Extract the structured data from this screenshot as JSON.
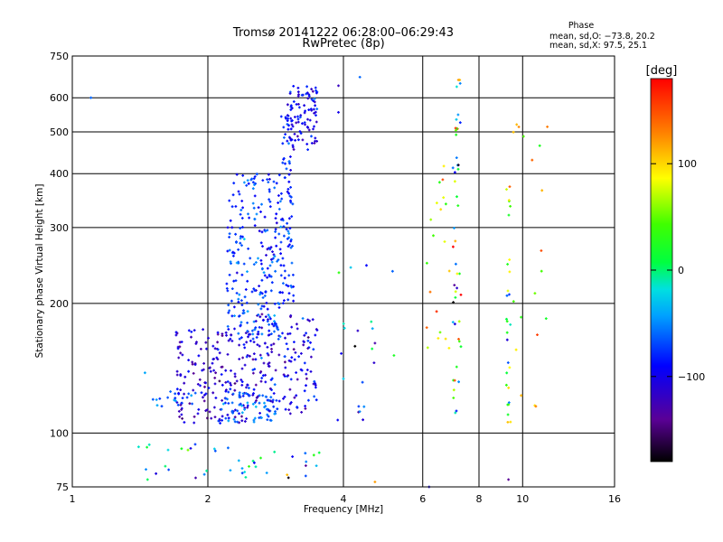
{
  "chart_data": {
    "type": "scatter",
    "title": "Tromsø 20141222 06:28:00–06:29:43",
    "subtitle": "RwPretec (8p)",
    "xlabel": "Frequency [MHz]",
    "ylabel": "Stationary phase Virtual Height [km]",
    "x_scale": "log",
    "y_scale": "log",
    "xlim": [
      1,
      16
    ],
    "ylim": [
      75,
      750
    ],
    "x_ticks": [
      1,
      2,
      4,
      6,
      8,
      10,
      16
    ],
    "y_ticks": [
      75,
      100,
      200,
      300,
      400,
      500,
      600,
      750
    ],
    "x_tick_labels": [
      "1",
      "2",
      "4",
      "6",
      "8",
      "10",
      "16"
    ],
    "y_tick_labels": [
      "75",
      "100",
      "200",
      "300",
      "400",
      "500",
      "600",
      "750"
    ],
    "grid": true,
    "phase_info": {
      "heading": "Phase",
      "line1": "mean, sd,O: −73.8, 20.2",
      "line2": "mean, sd,X:  97.5, 25.1"
    },
    "colorbar": {
      "label": "[deg]",
      "range": [
        -180,
        180
      ],
      "ticks": [
        100,
        0,
        -100
      ],
      "tick_labels": [
        "100",
        "0",
        "−100"
      ]
    },
    "clusters": [
      {
        "f_range": [
          1.7,
          2.5
        ],
        "h_range": [
          105,
          175
        ],
        "n": 180,
        "phase_mean": -110,
        "phase_sd": 25
      },
      {
        "f_range": [
          2.1,
          2.9
        ],
        "h_range": [
          106,
          125
        ],
        "n": 70,
        "phase_mean": -60,
        "phase_sd": 20
      },
      {
        "f_range": [
          2.5,
          3.5
        ],
        "h_range": [
          110,
          190
        ],
        "n": 160,
        "phase_mean": -100,
        "phase_sd": 30
      },
      {
        "f_range": [
          2.2,
          2.9
        ],
        "h_range": [
          165,
          400
        ],
        "n": 230,
        "phase_mean": -75,
        "phase_sd": 25
      },
      {
        "f_range": [
          2.9,
          3.1
        ],
        "h_range": [
          200,
          550
        ],
        "n": 90,
        "phase_mean": -80,
        "phase_sd": 20
      },
      {
        "f_range": [
          3.0,
          3.5
        ],
        "h_range": [
          450,
          640
        ],
        "n": 90,
        "phase_mean": -95,
        "phase_sd": 25
      },
      {
        "f_range": [
          1.5,
          1.9
        ],
        "h_range": [
          115,
          125
        ],
        "n": 18,
        "phase_mean": -70,
        "phase_sd": 20
      },
      {
        "f_range": [
          1.4,
          3.6
        ],
        "h_range": [
          78,
          95
        ],
        "n": 40,
        "phase_mean": -30,
        "phase_sd": 70
      },
      {
        "f_range": [
          7.0,
          7.3
        ],
        "h_range": [
          110,
          650
        ],
        "n": 45,
        "phase_mean": 20,
        "phase_sd": 120
      },
      {
        "f_range": [
          9.2,
          9.4
        ],
        "h_range": [
          100,
          400
        ],
        "n": 28,
        "phase_mean": 40,
        "phase_sd": 90
      },
      {
        "f_range": [
          6.1,
          6.9
        ],
        "h_range": [
          120,
          430
        ],
        "n": 20,
        "phase_mean": 90,
        "phase_sd": 60
      },
      {
        "f_range": [
          3.8,
          5.2
        ],
        "h_range": [
          105,
          260
        ],
        "n": 22,
        "phase_mean": -60,
        "phase_sd": 70
      },
      {
        "f_range": [
          9.5,
          11.5
        ],
        "h_range": [
          110,
          520
        ],
        "n": 16,
        "phase_mean": 80,
        "phase_sd": 50
      }
    ],
    "points": [
      {
        "f": 1.1,
        "h": 600,
        "phase": -60
      },
      {
        "f": 4.35,
        "h": 670,
        "phase": -60
      },
      {
        "f": 3.9,
        "h": 640,
        "phase": -120
      },
      {
        "f": 3.9,
        "h": 555,
        "phase": -100
      },
      {
        "f": 7.2,
        "h": 660,
        "phase": 120
      },
      {
        "f": 7.25,
        "h": 660,
        "phase": 110
      },
      {
        "f": 9.7,
        "h": 520,
        "phase": 110
      },
      {
        "f": 10.5,
        "h": 430,
        "phase": 140
      },
      {
        "f": 11.0,
        "h": 265,
        "phase": 150
      },
      {
        "f": 4.5,
        "h": 245,
        "phase": -90
      },
      {
        "f": 1.45,
        "h": 138,
        "phase": -40
      },
      {
        "f": 4.7,
        "h": 77,
        "phase": 120
      },
      {
        "f": 6.2,
        "h": 75,
        "phase": -100
      },
      {
        "f": 9.3,
        "h": 78,
        "phase": -140
      },
      {
        "f": 3.3,
        "h": 84,
        "phase": -140
      },
      {
        "f": 3.0,
        "h": 80,
        "phase": 110
      }
    ]
  }
}
